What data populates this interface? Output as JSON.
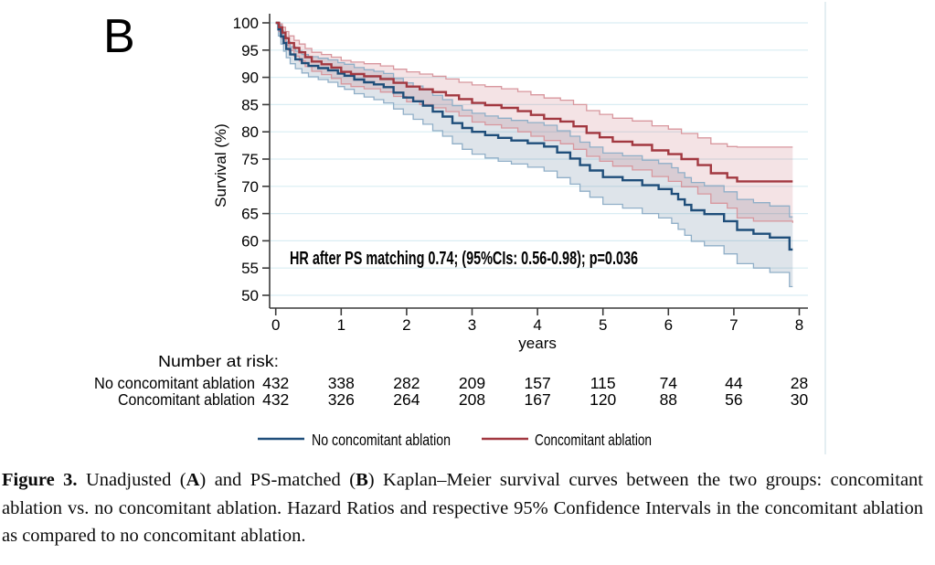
{
  "panel_label": "B",
  "chart_data": {
    "type": "line",
    "subtype": "kaplan-meier-step-with-ci-bands",
    "title": "",
    "xlabel": "years",
    "ylabel": "Survival (%)",
    "xlim": [
      0,
      8
    ],
    "xticks": [
      0,
      1,
      2,
      3,
      4,
      5,
      6,
      7,
      8
    ],
    "ylim": [
      50,
      100
    ],
    "yticks": [
      100,
      95,
      90,
      85,
      80,
      75,
      70,
      65,
      60,
      55,
      50
    ],
    "grid": "horizontal light-blue gridlines at every y tick",
    "legend_position": "bottom",
    "annotation": "HR after PS matching 0.74; (95%CIs: 0.56-0.98); p=0.036",
    "series": [
      {
        "name": "No concomitant ablation",
        "color": "#1f4e7a",
        "ci_edge_color": "#90afc8",
        "ci_fill": "rgba(70,105,140,0.18)",
        "steps": [
          [
            0,
            100
          ],
          [
            0.04,
            98.8
          ],
          [
            0.08,
            97.5
          ],
          [
            0.12,
            96.3
          ],
          [
            0.16,
            95.2
          ],
          [
            0.22,
            94.2
          ],
          [
            0.3,
            93.3
          ],
          [
            0.4,
            92.6
          ],
          [
            0.5,
            92.1
          ],
          [
            0.65,
            91.7
          ],
          [
            0.8,
            91.3
          ],
          [
            0.95,
            90.7
          ],
          [
            1.05,
            90.3
          ],
          [
            1.2,
            89.6
          ],
          [
            1.35,
            89.1
          ],
          [
            1.5,
            88.7
          ],
          [
            1.65,
            88.2
          ],
          [
            1.8,
            87.2
          ],
          [
            1.95,
            86.3
          ],
          [
            2.1,
            85.6
          ],
          [
            2.25,
            84.8
          ],
          [
            2.4,
            83.7
          ],
          [
            2.55,
            82.8
          ],
          [
            2.7,
            81.6
          ],
          [
            2.85,
            80.7
          ],
          [
            3,
            80
          ],
          [
            3.2,
            79.4
          ],
          [
            3.4,
            78.9
          ],
          [
            3.6,
            78.4
          ],
          [
            3.85,
            77.9
          ],
          [
            4.1,
            77.3
          ],
          [
            4.3,
            76.2
          ],
          [
            4.5,
            75.1
          ],
          [
            4.65,
            73.9
          ],
          [
            4.8,
            72.9
          ],
          [
            5,
            71.7
          ],
          [
            5.3,
            71.1
          ],
          [
            5.6,
            70.2
          ],
          [
            5.85,
            69.5
          ],
          [
            6.05,
            68.6
          ],
          [
            6.15,
            67.6
          ],
          [
            6.25,
            66.6
          ],
          [
            6.35,
            65.6
          ],
          [
            6.55,
            64.9
          ],
          [
            6.85,
            63.6
          ],
          [
            7.05,
            62
          ],
          [
            7.3,
            61.3
          ],
          [
            7.55,
            60.6
          ],
          [
            7.85,
            58.4
          ],
          [
            7.9,
            58.4
          ]
        ],
        "ci_lower": [
          [
            0,
            100
          ],
          [
            0.04,
            97.6
          ],
          [
            0.08,
            96.1
          ],
          [
            0.12,
            94.8
          ],
          [
            0.16,
            93.6
          ],
          [
            0.22,
            92.5
          ],
          [
            0.3,
            91.6
          ],
          [
            0.4,
            90.8
          ],
          [
            0.5,
            90.1
          ],
          [
            0.65,
            89.6
          ],
          [
            0.8,
            89.1
          ],
          [
            0.95,
            88.3
          ],
          [
            1.05,
            87.8
          ],
          [
            1.2,
            87
          ],
          [
            1.35,
            86.4
          ],
          [
            1.5,
            85.9
          ],
          [
            1.65,
            85.3
          ],
          [
            1.8,
            84.2
          ],
          [
            1.95,
            83.2
          ],
          [
            2.1,
            82.3
          ],
          [
            2.25,
            81.4
          ],
          [
            2.4,
            80.2
          ],
          [
            2.55,
            79.2
          ],
          [
            2.7,
            77.8
          ],
          [
            2.85,
            76.8
          ],
          [
            3,
            75.9
          ],
          [
            3.2,
            75.2
          ],
          [
            3.4,
            74.6
          ],
          [
            3.6,
            74.1
          ],
          [
            3.85,
            73.5
          ],
          [
            4.1,
            72.8
          ],
          [
            4.3,
            71.6
          ],
          [
            4.5,
            70.4
          ],
          [
            4.65,
            69.1
          ],
          [
            4.8,
            68
          ],
          [
            5,
            66.7
          ],
          [
            5.3,
            66
          ],
          [
            5.6,
            65
          ],
          [
            5.85,
            64.2
          ],
          [
            6.05,
            63.2
          ],
          [
            6.15,
            62.1
          ],
          [
            6.25,
            61
          ],
          [
            6.35,
            59.9
          ],
          [
            6.55,
            59.1
          ],
          [
            6.85,
            57.6
          ],
          [
            7.05,
            55.8
          ],
          [
            7.3,
            55
          ],
          [
            7.55,
            54.2
          ],
          [
            7.85,
            51.6
          ],
          [
            7.9,
            51.6
          ]
        ],
        "ci_upper": [
          [
            0,
            100
          ],
          [
            0.04,
            99.6
          ],
          [
            0.08,
            98.6
          ],
          [
            0.12,
            97.5
          ],
          [
            0.16,
            96.5
          ],
          [
            0.22,
            95.6
          ],
          [
            0.3,
            94.8
          ],
          [
            0.4,
            94.2
          ],
          [
            0.5,
            93.8
          ],
          [
            0.65,
            93.5
          ],
          [
            0.8,
            93.2
          ],
          [
            0.95,
            92.7
          ],
          [
            1.05,
            92.4
          ],
          [
            1.2,
            91.8
          ],
          [
            1.35,
            91.4
          ],
          [
            1.5,
            91.1
          ],
          [
            1.65,
            90.7
          ],
          [
            1.8,
            89.8
          ],
          [
            1.95,
            89
          ],
          [
            2.1,
            88.4
          ],
          [
            2.25,
            87.7
          ],
          [
            2.4,
            86.7
          ],
          [
            2.55,
            85.9
          ],
          [
            2.7,
            84.8
          ],
          [
            2.85,
            84
          ],
          [
            3,
            83.4
          ],
          [
            3.2,
            82.9
          ],
          [
            3.4,
            82.5
          ],
          [
            3.6,
            82.1
          ],
          [
            3.85,
            81.7
          ],
          [
            4.1,
            81.2
          ],
          [
            4.3,
            80.2
          ],
          [
            4.5,
            79.2
          ],
          [
            4.65,
            78.1
          ],
          [
            4.8,
            77.2
          ],
          [
            5,
            76.1
          ],
          [
            5.3,
            75.6
          ],
          [
            5.6,
            74.8
          ],
          [
            5.85,
            74.2
          ],
          [
            6.05,
            73.4
          ],
          [
            6.15,
            72.5
          ],
          [
            6.25,
            71.6
          ],
          [
            6.35,
            70.7
          ],
          [
            6.55,
            70.1
          ],
          [
            6.85,
            69
          ],
          [
            7.05,
            67.6
          ],
          [
            7.3,
            67
          ],
          [
            7.55,
            66.4
          ],
          [
            7.85,
            64.4
          ],
          [
            7.9,
            64.4
          ]
        ]
      },
      {
        "name": "Concomitant ablation",
        "color": "#a23840",
        "ci_edge_color": "#d8979e",
        "ci_fill": "rgba(180,70,80,0.15)",
        "steps": [
          [
            0,
            100
          ],
          [
            0.05,
            99.2
          ],
          [
            0.1,
            98.2
          ],
          [
            0.15,
            97.2
          ],
          [
            0.2,
            96.3
          ],
          [
            0.28,
            95.4
          ],
          [
            0.36,
            94.6
          ],
          [
            0.45,
            93.7
          ],
          [
            0.55,
            92.9
          ],
          [
            0.7,
            92.4
          ],
          [
            0.85,
            91.8
          ],
          [
            1,
            91
          ],
          [
            1.15,
            90.6
          ],
          [
            1.35,
            90.2
          ],
          [
            1.6,
            89.7
          ],
          [
            1.8,
            89
          ],
          [
            2,
            88.3
          ],
          [
            2.2,
            87.8
          ],
          [
            2.4,
            87.3
          ],
          [
            2.6,
            86.7
          ],
          [
            2.8,
            86
          ],
          [
            3,
            85.3
          ],
          [
            3.2,
            84.9
          ],
          [
            3.45,
            84.4
          ],
          [
            3.7,
            83.8
          ],
          [
            3.9,
            83.1
          ],
          [
            4.1,
            82.4
          ],
          [
            4.35,
            81.9
          ],
          [
            4.55,
            81
          ],
          [
            4.75,
            79.8
          ],
          [
            4.95,
            79
          ],
          [
            5.15,
            78.2
          ],
          [
            5.45,
            77.6
          ],
          [
            5.75,
            76.6
          ],
          [
            6,
            75.9
          ],
          [
            6.2,
            75
          ],
          [
            6.45,
            73.9
          ],
          [
            6.65,
            72.4
          ],
          [
            6.9,
            71.6
          ],
          [
            7.05,
            70.9
          ],
          [
            7.9,
            70.9
          ]
        ],
        "ci_lower": [
          [
            0,
            100
          ],
          [
            0.05,
            98.4
          ],
          [
            0.1,
            97.1
          ],
          [
            0.15,
            95.9
          ],
          [
            0.2,
            94.9
          ],
          [
            0.28,
            93.9
          ],
          [
            0.36,
            93
          ],
          [
            0.45,
            92
          ],
          [
            0.55,
            91.1
          ],
          [
            0.7,
            90.5
          ],
          [
            0.85,
            89.8
          ],
          [
            1,
            88.8
          ],
          [
            1.15,
            88.3
          ],
          [
            1.35,
            87.9
          ],
          [
            1.6,
            87.3
          ],
          [
            1.8,
            86.5
          ],
          [
            2,
            85.5
          ],
          [
            2.2,
            85
          ],
          [
            2.4,
            84.4
          ],
          [
            2.6,
            83.7
          ],
          [
            2.8,
            82.9
          ],
          [
            3,
            81.8
          ],
          [
            3.2,
            81.3
          ],
          [
            3.45,
            80.7
          ],
          [
            3.7,
            80
          ],
          [
            3.9,
            79.2
          ],
          [
            4.1,
            78.4
          ],
          [
            4.35,
            77.8
          ],
          [
            4.55,
            76.8
          ],
          [
            4.75,
            75.5
          ],
          [
            4.95,
            74.6
          ],
          [
            5.15,
            73.7
          ],
          [
            5.45,
            73
          ],
          [
            5.75,
            71.8
          ],
          [
            6,
            70.9
          ],
          [
            6.2,
            69.9
          ],
          [
            6.45,
            68.6
          ],
          [
            6.65,
            66.9
          ],
          [
            6.9,
            66
          ],
          [
            7.05,
            64.2
          ],
          [
            7.3,
            63.6
          ],
          [
            7.9,
            63.3
          ]
        ],
        "ci_upper": [
          [
            0,
            100
          ],
          [
            0.05,
            99.8
          ],
          [
            0.1,
            99.2
          ],
          [
            0.15,
            98.4
          ],
          [
            0.2,
            97.6
          ],
          [
            0.28,
            96.8
          ],
          [
            0.36,
            96.1
          ],
          [
            0.45,
            95.3
          ],
          [
            0.55,
            94.6
          ],
          [
            0.7,
            94.2
          ],
          [
            0.85,
            93.7
          ],
          [
            1,
            93.1
          ],
          [
            1.15,
            92.8
          ],
          [
            1.35,
            92.5
          ],
          [
            1.6,
            92.1
          ],
          [
            1.8,
            91.5
          ],
          [
            2,
            91
          ],
          [
            2.2,
            90.6
          ],
          [
            2.4,
            90.2
          ],
          [
            2.6,
            89.7
          ],
          [
            2.8,
            89.1
          ],
          [
            3,
            88.6
          ],
          [
            3.2,
            88.3
          ],
          [
            3.45,
            87.9
          ],
          [
            3.7,
            87.4
          ],
          [
            3.9,
            86.8
          ],
          [
            4.1,
            86.2
          ],
          [
            4.35,
            85.8
          ],
          [
            4.55,
            85
          ],
          [
            4.75,
            83.9
          ],
          [
            4.95,
            83.2
          ],
          [
            5.15,
            82.5
          ],
          [
            5.45,
            82
          ],
          [
            5.75,
            81.1
          ],
          [
            6,
            80.5
          ],
          [
            6.2,
            79.7
          ],
          [
            6.45,
            78.9
          ],
          [
            6.65,
            77.8
          ],
          [
            6.9,
            77.3
          ],
          [
            7.05,
            77.2
          ],
          [
            7.9,
            77.2
          ]
        ]
      }
    ],
    "number_at_risk": {
      "title": "Number at risk:",
      "rows": [
        {
          "label": "No concomitant ablation",
          "values": [
            432,
            338,
            282,
            209,
            157,
            115,
            74,
            44,
            28
          ]
        },
        {
          "label": "Concomitant ablation",
          "values": [
            432,
            326,
            264,
            208,
            167,
            120,
            88,
            56,
            30
          ]
        }
      ]
    },
    "legend": [
      "No concomitant ablation",
      "Concomitant ablation"
    ]
  },
  "caption": {
    "segments": [
      {
        "text": "Figure 3. ",
        "bold": true
      },
      {
        "text": "Unadjusted (",
        "bold": false
      },
      {
        "text": "A",
        "bold": true
      },
      {
        "text": ") and PS-matched (",
        "bold": false
      },
      {
        "text": "B",
        "bold": true
      },
      {
        "text": ") Kaplan–Meier survival curves between the two groups: concomitant ablation vs. no concomitant ablation. Hazard Ratios and respective 95% Confidence Intervals in the concomitant ablation as compared to no concomitant ablation.",
        "bold": false
      }
    ]
  },
  "colors": {
    "grid": "#d9edf3",
    "axis": "#3a3a3a",
    "figure_border": "#dce8ee"
  }
}
